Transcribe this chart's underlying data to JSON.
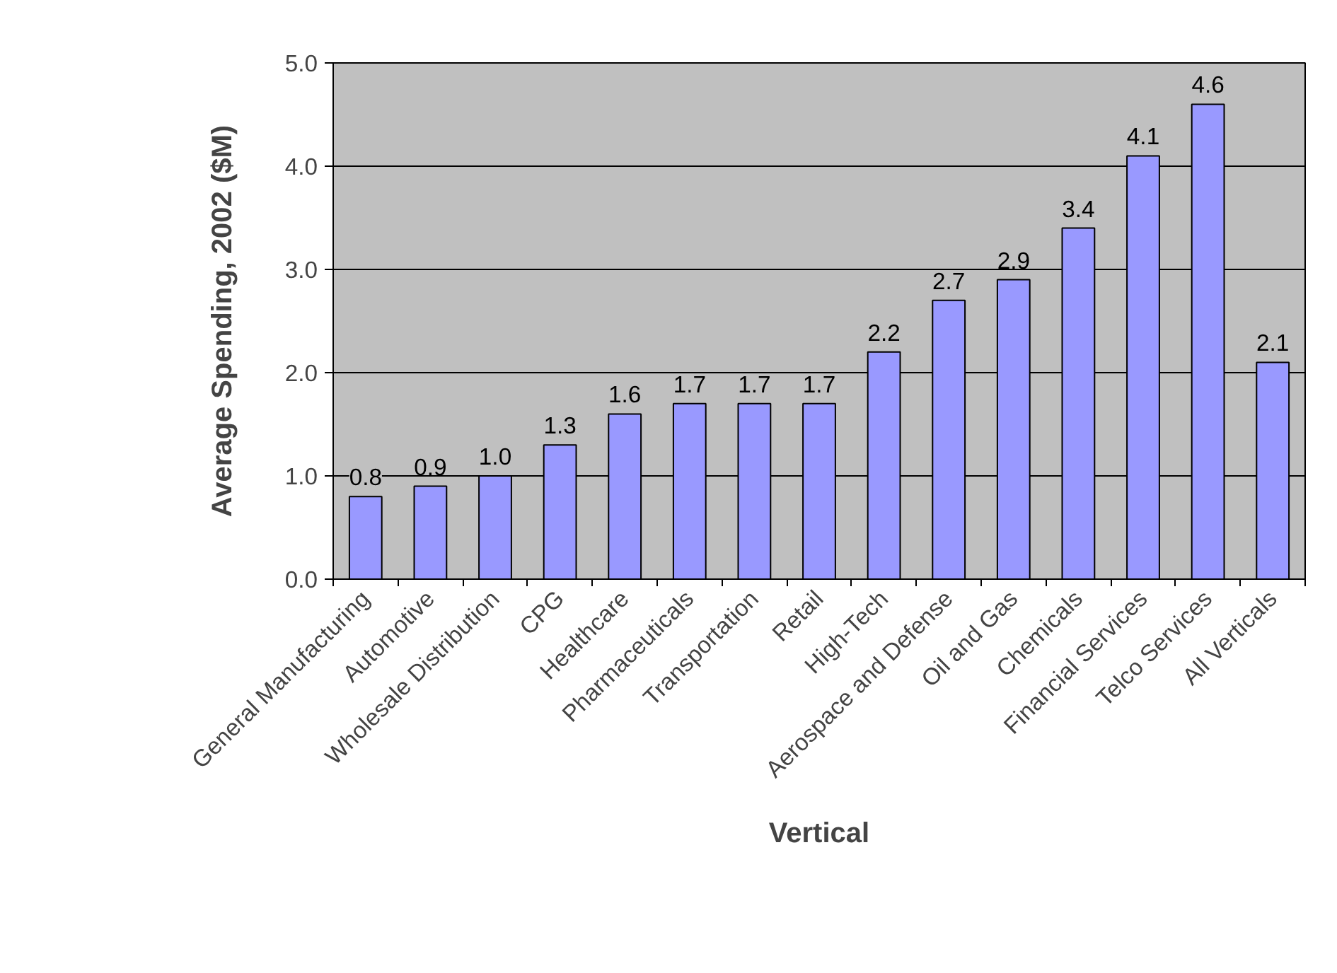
{
  "chart_data": {
    "type": "bar",
    "xlabel": "Vertical",
    "ylabel": "Average Spending, 2002 ($M)",
    "categories": [
      "General Manufacturing",
      "Automotive",
      "Wholesale Distribution",
      "CPG",
      "Healthcare",
      "Pharmaceuticals",
      "Transportation",
      "Retail",
      "High-Tech",
      "Aerospace and Defense",
      "Oil and Gas",
      "Chemicals",
      "Financial Services",
      "Telco Services",
      "All Verticals"
    ],
    "values": [
      0.8,
      0.9,
      1.0,
      1.3,
      1.6,
      1.7,
      1.7,
      1.7,
      2.2,
      2.7,
      2.9,
      3.4,
      4.1,
      4.6,
      2.1
    ],
    "value_labels": [
      "0.8",
      "0.9",
      "1.0",
      "1.3",
      "1.6",
      "1.7",
      "1.7",
      "1.7",
      "2.2",
      "2.7",
      "2.9",
      "3.4",
      "4.1",
      "4.6",
      "2.1"
    ],
    "color": "#9999ff",
    "ylim": [
      0,
      5
    ],
    "yticks": [
      {
        "value": 0,
        "label": "0.0"
      },
      {
        "value": 1,
        "label": "1.0"
      },
      {
        "value": 2,
        "label": "2.0"
      },
      {
        "value": 3,
        "label": "3.0"
      },
      {
        "value": 4,
        "label": "4.0"
      },
      {
        "value": 5,
        "label": "5.0"
      }
    ],
    "grid": "y"
  }
}
